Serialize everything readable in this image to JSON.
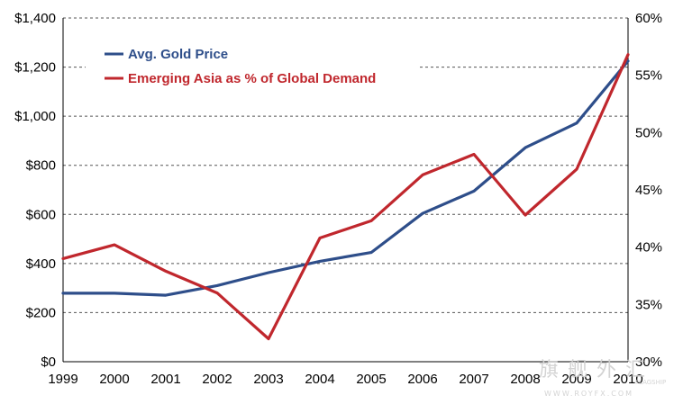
{
  "chart_data": {
    "type": "line",
    "x": [
      "1999",
      "2000",
      "2001",
      "2002",
      "2003",
      "2004",
      "2005",
      "2006",
      "2007",
      "2008",
      "2009",
      "2010"
    ],
    "y_left": {
      "ticks": [
        "$0",
        "$200",
        "$400",
        "$600",
        "$800",
        "$1,000",
        "$1,200",
        "$1,400"
      ],
      "ylim": [
        0,
        1400
      ]
    },
    "y_right": {
      "ticks": [
        "30%",
        "35%",
        "40%",
        "45%",
        "50%",
        "55%",
        "60%"
      ],
      "ylim": [
        30,
        60
      ]
    },
    "grid": "horizontal dashed",
    "legend_position": "top-left",
    "series": [
      {
        "name": "Avg. Gold Price",
        "axis": "left",
        "color": "#2e4e8a",
        "values": [
          279,
          279,
          271,
          310,
          363,
          409,
          445,
          604,
          695,
          872,
          972,
          1225
        ]
      },
      {
        "name": "Emerging Asia as % of Global Demand",
        "axis": "right",
        "color": "#c0272d",
        "values": [
          39.0,
          40.2,
          37.9,
          36.0,
          32.0,
          40.8,
          42.3,
          46.3,
          48.1,
          42.8,
          46.8,
          56.8
        ]
      }
    ]
  },
  "watermark": {
    "text": "旗舰外汇",
    "sub": "FLAGSHIP",
    "url": "WWW.ROYFX.COM"
  }
}
